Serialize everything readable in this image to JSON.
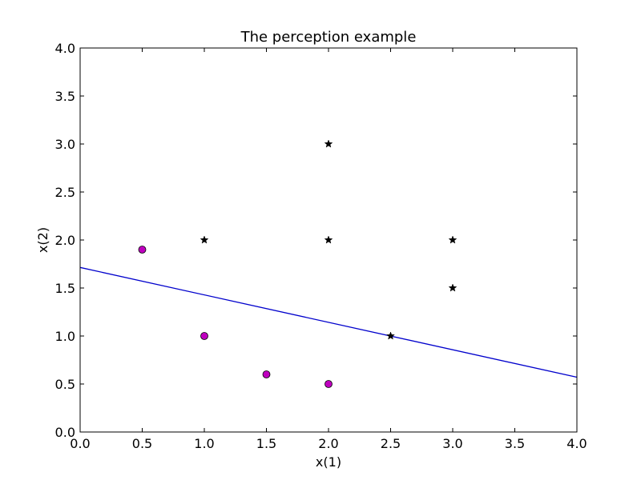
{
  "chart_data": {
    "type": "scatter",
    "title": "The perception example",
    "xlabel": "x(1)",
    "ylabel": "x(2)",
    "xlim": [
      0.0,
      4.0
    ],
    "ylim": [
      0.0,
      4.0
    ],
    "grid": false,
    "x_ticks": [
      "0.0",
      "0.5",
      "1.0",
      "1.5",
      "2.0",
      "2.5",
      "3.0",
      "3.5",
      "4.0"
    ],
    "y_ticks": [
      "0.0",
      "0.5",
      "1.0",
      "1.5",
      "2.0",
      "2.5",
      "3.0",
      "3.5",
      "4.0"
    ],
    "series": [
      {
        "marker": "circle",
        "color": "#bf00bf",
        "points": [
          [
            0.5,
            1.9
          ],
          [
            1.0,
            1.0
          ],
          [
            1.5,
            0.6
          ],
          [
            2.0,
            0.5
          ]
        ]
      },
      {
        "marker": "star",
        "color": "#000000",
        "points": [
          [
            1.0,
            2.0
          ],
          [
            2.0,
            3.0
          ],
          [
            2.0,
            2.0
          ],
          [
            3.0,
            2.0
          ],
          [
            3.0,
            1.5
          ],
          [
            2.5,
            1.0
          ]
        ]
      }
    ],
    "line": {
      "color": "#0000cc",
      "points": [
        [
          0.0,
          1.714
        ],
        [
          4.0,
          0.571
        ]
      ]
    }
  }
}
